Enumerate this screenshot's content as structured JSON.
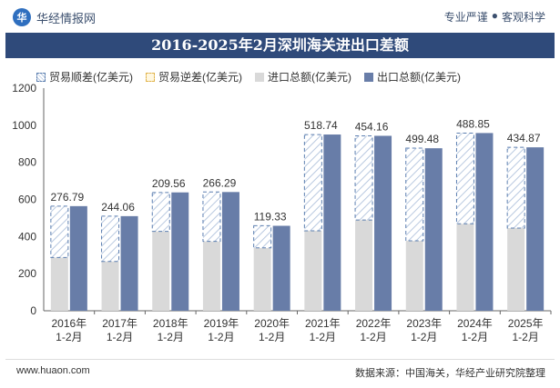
{
  "header": {
    "brand": "华经情报网",
    "tagline_left": "专业严谨",
    "tagline_sep": "●",
    "tagline_right": "客观科学",
    "logo_text": "华"
  },
  "title": "2016-2025年2月深圳海关进出口差额",
  "footer": {
    "website": "www.huaon.com",
    "source": "数据来源：中国海关，华经产业研究院整理"
  },
  "colors": {
    "export": "#687da8",
    "import": "#d9d9d9",
    "surplus_border": "#5c7fb0",
    "title_bg": "#2f4a7a"
  },
  "chart_data": {
    "type": "bar",
    "title": "2016-2025年2月深圳海关进出口差额",
    "categories": [
      "2016年\n1-2月",
      "2017年\n1-2月",
      "2018年\n1-2月",
      "2019年\n1-2月",
      "2020年\n1-2月",
      "2021年\n1-2月",
      "2022年\n1-2月",
      "2023年\n1-2月",
      "2024年\n1-2月",
      "2025年\n1-2月"
    ],
    "series": [
      {
        "name": "贸易顺差(亿美元)",
        "values": [
          276.79,
          244.06,
          209.56,
          266.29,
          119.33,
          518.74,
          454.16,
          499.48,
          488.85,
          434.87
        ]
      },
      {
        "name": "贸易逆差(亿美元)",
        "values": [
          0,
          0,
          0,
          0,
          0,
          0,
          0,
          0,
          0,
          0
        ]
      },
      {
        "name": "进口总额(亿美元)",
        "values": [
          287,
          266,
          428,
          374,
          339,
          431,
          489,
          377,
          469,
          446
        ]
      },
      {
        "name": "出口总额(亿美元)",
        "values": [
          564,
          510,
          638,
          640,
          458,
          950,
          943,
          876,
          958,
          881
        ]
      }
    ],
    "xlabel": "",
    "ylabel": "",
    "ylim": [
      0,
      1200
    ],
    "yticks": [
      0,
      200,
      400,
      600,
      800,
      1000,
      1200
    ],
    "legend_position": "top-left"
  }
}
